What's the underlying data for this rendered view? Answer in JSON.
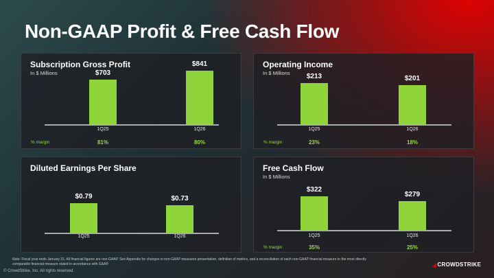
{
  "slide": {
    "title": "Non-GAAP Profit & Free Cash Flow",
    "footnote": "Note: Fiscal year ends January 31. All financial figures are non-GAAP. See Appendix for changes in non-GAAP measures presentation, definition of metrics, and a reconciliation of each non-GAAP financial measure to the most directly comparable financial measure stated in accordance with GAAP.",
    "copyright": "© CrowdStrike, Inc. All rights reserved.",
    "logo_text": "CROWDSTRIKE",
    "colors": {
      "bar": "#8ed43a",
      "accent_red": "#e30000"
    }
  },
  "chart_data": [
    {
      "type": "bar",
      "title": "Subscription Gross Profit",
      "subtitle": "In $ Millions",
      "categories": [
        "1Q25",
        "1Q26"
      ],
      "values": [
        703,
        841
      ],
      "value_labels": [
        "$703",
        "$841"
      ],
      "ylim": [
        0,
        900
      ],
      "margin_caption": "% margin",
      "margins": [
        "81%",
        "80%"
      ]
    },
    {
      "type": "bar",
      "title": "Operating Income",
      "subtitle": "In $ Millions",
      "categories": [
        "1Q25",
        "1Q26"
      ],
      "values": [
        213,
        201
      ],
      "value_labels": [
        "$213",
        "$201"
      ],
      "ylim": [
        0,
        230
      ],
      "margin_caption": "% margin",
      "margins": [
        "23%",
        "18%"
      ]
    },
    {
      "type": "bar",
      "title": "Diluted Earnings Per Share",
      "subtitle": "",
      "categories": [
        "1Q25",
        "1Q26"
      ],
      "values": [
        0.79,
        0.73
      ],
      "value_labels": [
        "$0.79",
        "$0.73"
      ],
      "ylim": [
        0,
        1.0
      ],
      "margin_caption": "",
      "margins": []
    },
    {
      "type": "bar",
      "title": "Free Cash Flow",
      "subtitle": "In $ Millions",
      "categories": [
        "1Q25",
        "1Q26"
      ],
      "values": [
        322,
        279
      ],
      "value_labels": [
        "$322",
        "$279"
      ],
      "ylim": [
        0,
        370
      ],
      "margin_caption": "% margin",
      "margins": [
        "35%",
        "25%"
      ]
    }
  ]
}
